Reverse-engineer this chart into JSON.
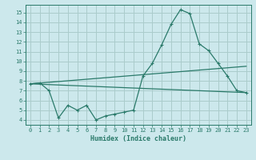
{
  "title": "",
  "xlabel": "Humidex (Indice chaleur)",
  "bg_color": "#cce8ec",
  "grid_color": "#aacccc",
  "line_color": "#2a7a6a",
  "xlim": [
    -0.5,
    23.5
  ],
  "ylim": [
    3.5,
    15.8
  ],
  "xticks": [
    0,
    1,
    2,
    3,
    4,
    5,
    6,
    7,
    8,
    9,
    10,
    11,
    12,
    13,
    14,
    15,
    16,
    17,
    18,
    19,
    20,
    21,
    22,
    23
  ],
  "yticks": [
    4,
    5,
    6,
    7,
    8,
    9,
    10,
    11,
    12,
    13,
    14,
    15
  ],
  "line1_x": [
    0,
    1,
    2,
    3,
    4,
    5,
    6,
    7,
    8,
    9,
    10,
    11,
    12,
    13,
    14,
    15,
    16,
    17,
    18,
    19,
    20,
    21,
    22,
    23
  ],
  "line1_y": [
    7.7,
    7.8,
    7.0,
    4.2,
    5.5,
    5.0,
    5.5,
    4.0,
    4.4,
    4.6,
    4.8,
    5.0,
    8.5,
    9.8,
    11.7,
    13.8,
    15.3,
    14.9,
    11.8,
    11.1,
    9.8,
    8.5,
    7.0,
    6.8
  ],
  "line2_x": [
    0,
    23
  ],
  "line2_y": [
    7.7,
    9.5
  ],
  "line3_x": [
    0,
    23
  ],
  "line3_y": [
    7.7,
    6.8
  ],
  "tick_fontsize": 5,
  "xlabel_fontsize": 6
}
